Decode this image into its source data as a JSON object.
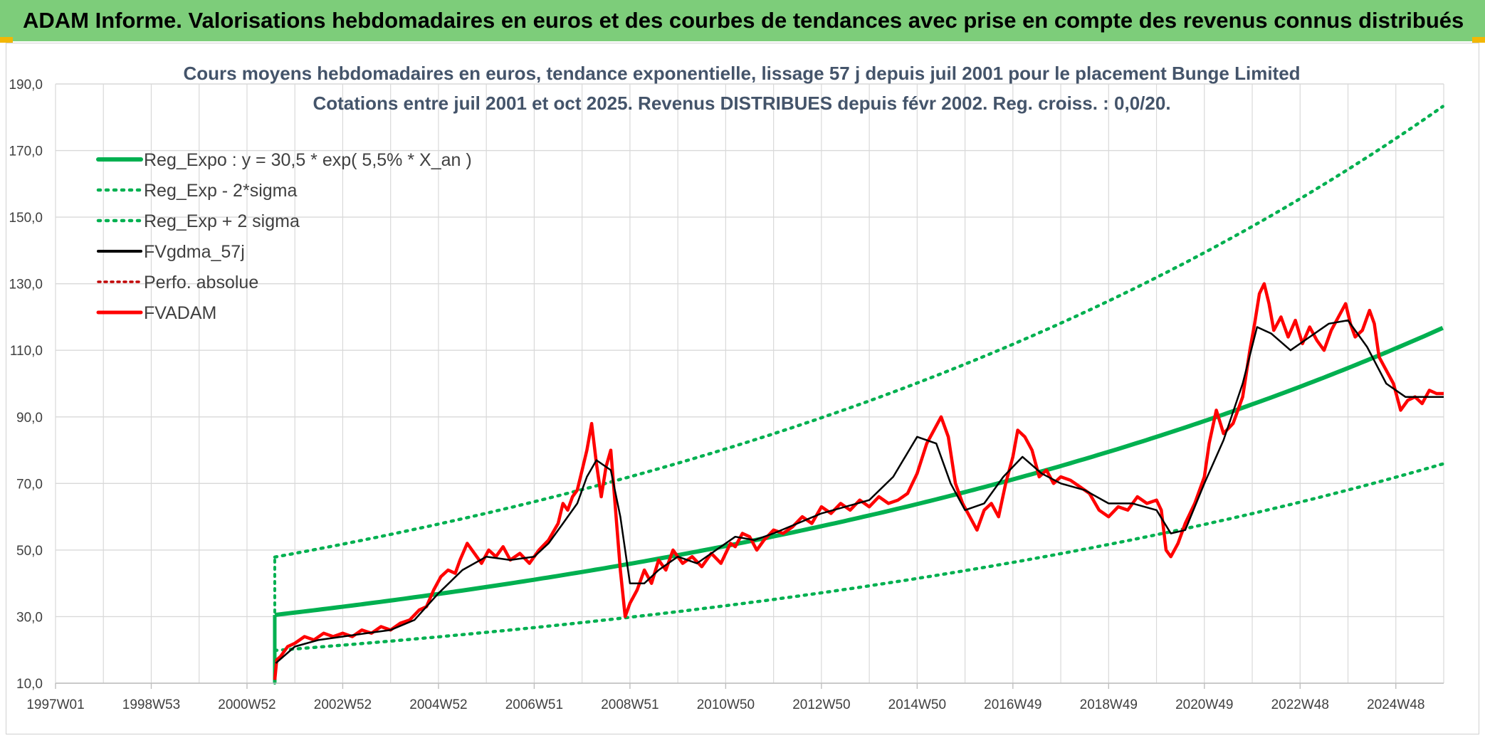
{
  "header": {
    "title": "ADAM Informe. Valorisations hebdomadaires en euros et des courbes de tendances avec prise en compte des revenus connus distribués"
  },
  "colors": {
    "banner": "#7dcd7a",
    "trend": "#00b050",
    "smooth": "#000000",
    "adam": "#ff0000",
    "perfo": "#c00000",
    "grid": "#d9d9d9",
    "title": "#44546a"
  },
  "chart_data": {
    "type": "line",
    "title": "Cours moyens hebdomadaires en euros, tendance exponentielle, lissage 57 j depuis juil 2001 pour le placement Bunge Limited",
    "subtitle": "Cotations entre juil 2001 et oct 2025. Revenus DISTRIBUES depuis févr 2002. Reg. croiss. : 0,0/20.",
    "xlabel": "",
    "ylabel": "",
    "ylim": [
      10,
      190
    ],
    "xlim": [
      1997.0,
      2026.0
    ],
    "grid": true,
    "legend_position": "top-left",
    "y_ticks": [
      "190,0",
      "170,0",
      "150,0",
      "130,0",
      "110,0",
      "90,0",
      "70,0",
      "50,0",
      "30,0",
      "10,0"
    ],
    "x_ticks": [
      {
        "label": "1997W01",
        "year": 1997.0
      },
      {
        "label": "1998W53",
        "year": 1999.0
      },
      {
        "label": "2000W52",
        "year": 2001.0
      },
      {
        "label": "2002W52",
        "year": 2003.0
      },
      {
        "label": "2004W52",
        "year": 2005.0
      },
      {
        "label": "2006W51",
        "year": 2007.0
      },
      {
        "label": "2008W51",
        "year": 2009.0
      },
      {
        "label": "2010W50",
        "year": 2011.0
      },
      {
        "label": "2012W50",
        "year": 2013.0
      },
      {
        "label": "2014W50",
        "year": 2015.0
      },
      {
        "label": "2016W49",
        "year": 2017.0
      },
      {
        "label": "2018W49",
        "year": 2019.0
      },
      {
        "label": "2020W49",
        "year": 2021.0
      },
      {
        "label": "2022W48",
        "year": 2023.0
      },
      {
        "label": "2024W48",
        "year": 2025.0
      }
    ],
    "regression": {
      "a": 30.5,
      "rate": 0.055,
      "start": 2001.58,
      "end": 2026.0,
      "sigma_low": 0.65,
      "sigma_high": 1.57
    },
    "legend": [
      {
        "key": "reg",
        "label": "Reg_Expo : y = 30,5 * exp( 5,5% *  X_an )"
      },
      {
        "key": "low",
        "label": "Reg_Exp - 2*sigma"
      },
      {
        "key": "high",
        "label": "Reg_Exp + 2 sigma"
      },
      {
        "key": "smooth",
        "label": "FVgdma_57j"
      },
      {
        "key": "perfo",
        "label": "Perfo. absolue"
      },
      {
        "key": "adam",
        "label": "FVADAM"
      }
    ],
    "series": [
      {
        "name": "FVADAM",
        "x": [
          2001.58,
          2001.62,
          2001.7,
          2001.85,
          2002.0,
          2002.2,
          2002.4,
          2002.6,
          2002.8,
          2003.0,
          2003.2,
          2003.4,
          2003.6,
          2003.8,
          2004.0,
          2004.2,
          2004.4,
          2004.6,
          2004.75,
          2004.9,
          2005.05,
          2005.2,
          2005.35,
          2005.45,
          2005.6,
          2005.75,
          2005.9,
          2006.05,
          2006.2,
          2006.35,
          2006.5,
          2006.7,
          2006.9,
          2007.1,
          2007.3,
          2007.5,
          2007.6,
          2007.7,
          2007.8,
          2007.9,
          2008.0,
          2008.1,
          2008.2,
          2008.3,
          2008.4,
          2008.5,
          2008.6,
          2008.7,
          2008.8,
          2008.9,
          2009.0,
          2009.15,
          2009.3,
          2009.45,
          2009.6,
          2009.75,
          2009.9,
          2010.1,
          2010.3,
          2010.5,
          2010.7,
          2010.9,
          2011.1,
          2011.2,
          2011.35,
          2011.5,
          2011.65,
          2011.8,
          2012.0,
          2012.2,
          2012.4,
          2012.6,
          2012.8,
          2013.0,
          2013.2,
          2013.4,
          2013.6,
          2013.8,
          2014.0,
          2014.2,
          2014.4,
          2014.6,
          2014.8,
          2015.0,
          2015.2,
          2015.35,
          2015.5,
          2015.65,
          2015.8,
          2015.95,
          2016.1,
          2016.25,
          2016.4,
          2016.55,
          2016.7,
          2016.85,
          2017.0,
          2017.1,
          2017.25,
          2017.4,
          2017.55,
          2017.7,
          2017.85,
          2018.0,
          2018.2,
          2018.4,
          2018.6,
          2018.8,
          2019.0,
          2019.2,
          2019.4,
          2019.6,
          2019.8,
          2020.0,
          2020.1,
          2020.2,
          2020.3,
          2020.45,
          2020.6,
          2020.8,
          2021.0,
          2021.1,
          2021.25,
          2021.4,
          2021.6,
          2021.8,
          2021.95,
          2022.05,
          2022.15,
          2022.25,
          2022.35,
          2022.45,
          2022.6,
          2022.75,
          2022.9,
          2023.05,
          2023.2,
          2023.35,
          2023.5,
          2023.65,
          2023.8,
          2023.95,
          2024.05,
          2024.15,
          2024.3,
          2024.45,
          2024.55,
          2024.65,
          2024.8,
          2024.95,
          2025.1,
          2025.25,
          2025.4,
          2025.55,
          2025.7,
          2025.85,
          2026.0
        ],
        "values": [
          11,
          17,
          18,
          21,
          22,
          24,
          23,
          25,
          24,
          25,
          24,
          26,
          25,
          27,
          26,
          28,
          29,
          32,
          33,
          38,
          42,
          44,
          43,
          47,
          52,
          49,
          46,
          50,
          48,
          51,
          47,
          49,
          46,
          50,
          53,
          58,
          64,
          62,
          66,
          68,
          74,
          80,
          88,
          76,
          66,
          75,
          80,
          62,
          44,
          30,
          34,
          38,
          44,
          40,
          47,
          44,
          50,
          46,
          48,
          45,
          49,
          46,
          52,
          51,
          55,
          54,
          50,
          53,
          56,
          55,
          57,
          60,
          58,
          63,
          61,
          64,
          62,
          65,
          63,
          66,
          64,
          65,
          67,
          73,
          82,
          86,
          90,
          84,
          70,
          64,
          60,
          56,
          62,
          64,
          60,
          70,
          78,
          86,
          84,
          80,
          72,
          74,
          70,
          72,
          71,
          69,
          67,
          62,
          60,
          63,
          62,
          66,
          64,
          65,
          62,
          50,
          48,
          52,
          58,
          64,
          72,
          82,
          92,
          85,
          88,
          96,
          110,
          118,
          127,
          130,
          124,
          116,
          120,
          114,
          119,
          112,
          117,
          113,
          110,
          116,
          120,
          124,
          118,
          114,
          116,
          122,
          118,
          108,
          104,
          100,
          92,
          95,
          96,
          94,
          98,
          97,
          97
        ]
      },
      {
        "name": "FVgdma_57j",
        "x": [
          2001.6,
          2002.0,
          2002.5,
          2003.0,
          2003.5,
          2004.0,
          2004.5,
          2005.0,
          2005.5,
          2006.0,
          2006.5,
          2007.0,
          2007.3,
          2007.6,
          2007.9,
          2008.1,
          2008.3,
          2008.6,
          2008.8,
          2009.0,
          2009.3,
          2009.6,
          2010.0,
          2010.4,
          2010.8,
          2011.2,
          2011.6,
          2012.0,
          2012.5,
          2013.0,
          2013.5,
          2014.0,
          2014.5,
          2015.0,
          2015.4,
          2015.7,
          2016.0,
          2016.4,
          2016.8,
          2017.2,
          2017.6,
          2018.0,
          2018.5,
          2019.0,
          2019.5,
          2020.0,
          2020.3,
          2020.6,
          2021.0,
          2021.4,
          2021.8,
          2022.1,
          2022.4,
          2022.8,
          2023.2,
          2023.6,
          2024.0,
          2024.4,
          2024.8,
          2025.2,
          2025.6,
          2026.0
        ],
        "values": [
          16,
          21,
          23,
          24,
          25,
          26,
          29,
          37,
          44,
          48,
          47,
          48,
          52,
          58,
          64,
          72,
          77,
          74,
          60,
          40,
          40,
          44,
          48,
          46,
          50,
          54,
          53,
          55,
          58,
          61,
          63,
          65,
          72,
          84,
          82,
          70,
          62,
          64,
          72,
          78,
          73,
          70,
          68,
          64,
          64,
          62,
          55,
          56,
          70,
          83,
          100,
          117,
          115,
          110,
          114,
          118,
          119,
          111,
          100,
          96,
          96,
          96
        ]
      }
    ]
  }
}
